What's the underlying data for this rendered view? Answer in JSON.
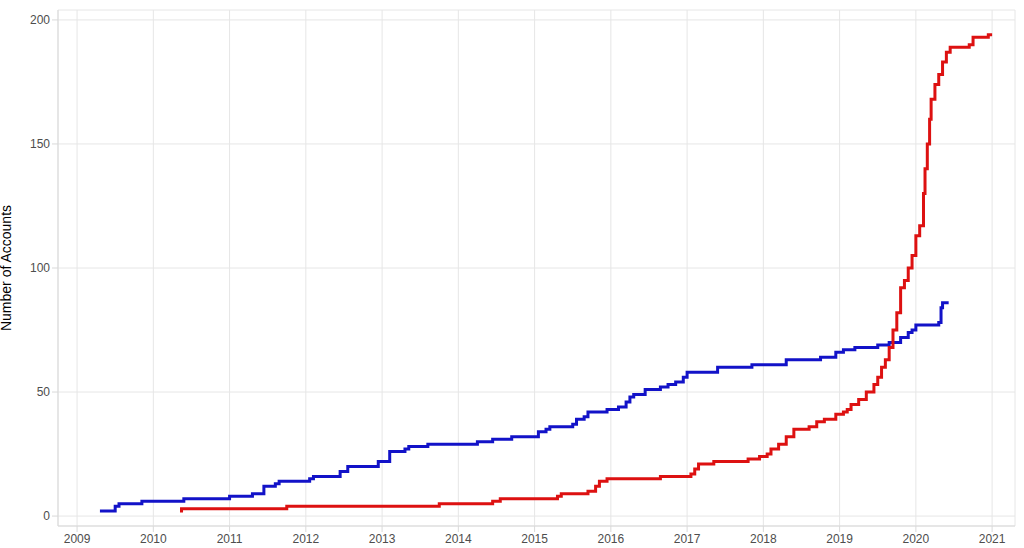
{
  "chart_data": {
    "type": "step",
    "y_label": "Number of Accounts",
    "xlim": [
      2008.75,
      2021.3
    ],
    "xticks": [
      2009,
      2010,
      2011,
      2012,
      2013,
      2014,
      2015,
      2016,
      2017,
      2018,
      2019,
      2020,
      2021
    ],
    "ylim": [
      -4,
      204
    ],
    "yticks": [
      0,
      50,
      100,
      150,
      200
    ],
    "grid": true,
    "series": [
      {
        "color": "#1212c8",
        "x": [
          2009.3,
          2009.5,
          2009.55,
          2009.85,
          2010.4,
          2011.0,
          2011.3,
          2011.45,
          2011.6,
          2011.65,
          2012.05,
          2012.1,
          2012.45,
          2012.55,
          2012.95,
          2013.1,
          2013.3,
          2013.35,
          2013.6,
          2014.25,
          2014.45,
          2014.7,
          2015.05,
          2015.15,
          2015.2,
          2015.5,
          2015.55,
          2015.65,
          2015.7,
          2015.95,
          2016.1,
          2016.2,
          2016.25,
          2016.3,
          2016.45,
          2016.65,
          2016.75,
          2016.85,
          2016.95,
          2017.0,
          2017.4,
          2017.85,
          2018.3,
          2018.75,
          2018.95,
          2019.05,
          2019.2,
          2019.5,
          2019.65,
          2019.8,
          2019.9,
          2019.95,
          2020.0,
          2020.3,
          2020.33,
          2020.35,
          2020.43
        ],
        "values": [
          2,
          4,
          5,
          6,
          7,
          8,
          9,
          12,
          13,
          14,
          15,
          16,
          18,
          20,
          22,
          26,
          27,
          28,
          29,
          30,
          31,
          32,
          34,
          35,
          36,
          37,
          39,
          40,
          42,
          43,
          44,
          46,
          48,
          49,
          51,
          52,
          53,
          54,
          56,
          58,
          60,
          61,
          63,
          64,
          66,
          67,
          68,
          69,
          70,
          72,
          74,
          75,
          77,
          78,
          84,
          86,
          86
        ]
      },
      {
        "color": "#dd1111",
        "x": [
          2010.35,
          2010.37,
          2011.75,
          2013.75,
          2014.45,
          2014.55,
          2015.3,
          2015.35,
          2015.7,
          2015.8,
          2015.85,
          2015.95,
          2016.65,
          2017.05,
          2017.1,
          2017.15,
          2017.35,
          2017.8,
          2017.95,
          2018.05,
          2018.1,
          2018.2,
          2018.3,
          2018.4,
          2018.6,
          2018.7,
          2018.8,
          2018.95,
          2019.05,
          2019.1,
          2019.15,
          2019.25,
          2019.35,
          2019.45,
          2019.5,
          2019.55,
          2019.6,
          2019.65,
          2019.7,
          2019.75,
          2019.8,
          2019.85,
          2019.9,
          2019.95,
          2020.0,
          2020.05,
          2020.1,
          2020.12,
          2020.15,
          2020.18,
          2020.2,
          2020.25,
          2020.3,
          2020.35,
          2020.4,
          2020.45,
          2020.7,
          2020.75,
          2020.95,
          2021.0
        ],
        "values": [
          2,
          3,
          4,
          5,
          6,
          7,
          8,
          9,
          10,
          12,
          14,
          15,
          16,
          17,
          19,
          21,
          22,
          23,
          24,
          25,
          27,
          29,
          32,
          35,
          36,
          38,
          39,
          41,
          42,
          43,
          45,
          47,
          50,
          53,
          56,
          60,
          63,
          68,
          75,
          82,
          92,
          95,
          100,
          105,
          113,
          117,
          130,
          140,
          150,
          160,
          168,
          174,
          178,
          183,
          187,
          189,
          190,
          193,
          194,
          194
        ]
      }
    ]
  }
}
